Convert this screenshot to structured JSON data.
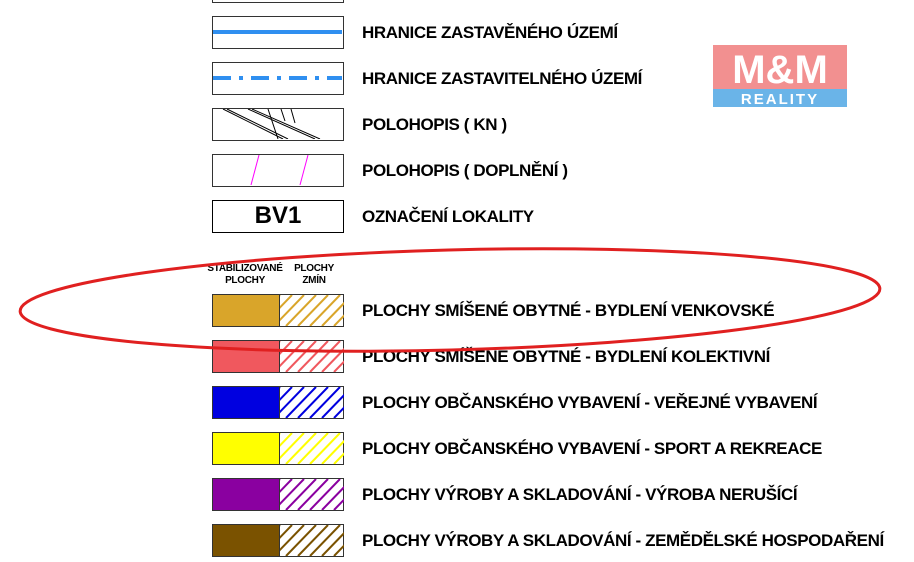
{
  "legend": {
    "lines": [
      {
        "label": "HRANICE ZASTAVĚNÉHO ÚZEMÍ",
        "symbol": "solid-line",
        "color": "#2f8ff0"
      },
      {
        "label": "HRANICE ZASTAVITELNÉHO ÚZEMÍ",
        "symbol": "dash-dot-line",
        "color": "#2f8ff0"
      },
      {
        "label": "POLOHOPIS ( KN )",
        "symbol": "black-lines"
      },
      {
        "label": "POLOHOPIS ( DOPLNĚNÍ )",
        "symbol": "magenta-lines",
        "color": "#ff00ff"
      },
      {
        "label": "OZNAČENÍ LOKALITY",
        "symbol": "text-box",
        "box_text": "BV1"
      }
    ],
    "header_stable_1": "STABILIZOVANÉ",
    "header_stable_2": "PLOCHY",
    "header_change_1": "PLOCHY",
    "header_change_2": "ZMÍN",
    "areas": [
      {
        "label": "PLOCHY SMÍŠENÉ OBYTNÉ - BYDLENÍ VENKOVSKÉ",
        "color": "#d9a52a"
      },
      {
        "label": "PLOCHY SMÍŠENÉ OBYTNÉ - BYDLENÍ KOLEKTIVNÍ",
        "color": "#f0585e"
      },
      {
        "label": "PLOCHY OBČANSKÉHO VYBAVENÍ - VEŘEJNÉ VYBAVENÍ",
        "color": "#0000e0"
      },
      {
        "label": "PLOCHY OBČANSKÉHO VYBAVENÍ - SPORT A REKREACE",
        "color": "#ffff00"
      },
      {
        "label": "PLOCHY VÝROBY A SKLADOVÁNÍ - VÝROBA NERUŠÍCÍ",
        "color": "#8a00a0"
      },
      {
        "label": "PLOCHY VÝROBY A SKLADOVÁNÍ -  ZEMĚDĚLSKÉ HOSPODAŘENÍ",
        "color": "#7a5200"
      }
    ]
  },
  "logo": {
    "top": "M&M",
    "bottom": "REALITY",
    "top_color": "#f08a8a",
    "bottom_color": "#6ab4e8"
  },
  "annotation": {
    "shape": "ellipse",
    "color": "#e02020"
  }
}
